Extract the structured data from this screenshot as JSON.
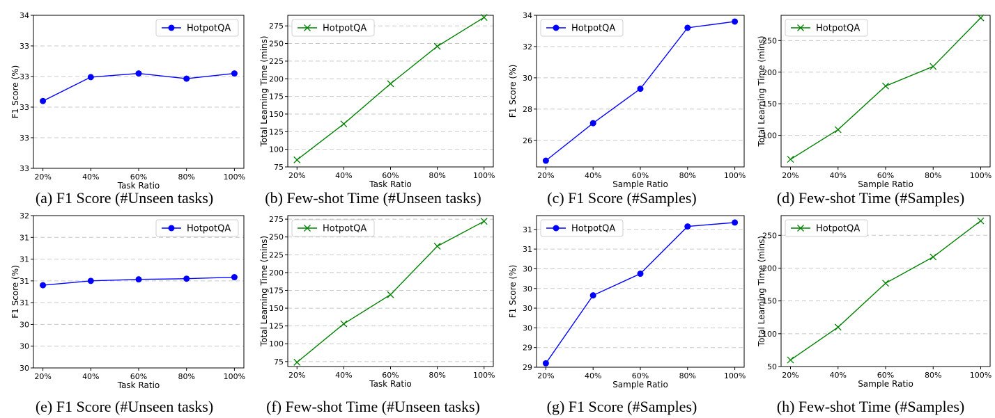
{
  "chart_data": [
    {
      "id": "a",
      "type": "line",
      "caption": "(a) F1 Score (#Unseen tasks)",
      "xlabel": "Task Ratio",
      "ylabel": "F1 Score (%)",
      "categories": [
        "20%",
        "40%",
        "60%",
        "80%",
        "100%"
      ],
      "yticks": [
        "33",
        "33",
        "33",
        "33",
        "33",
        "34"
      ],
      "ylim": [
        0,
        5
      ],
      "series": [
        {
          "name": "HotpotQA",
          "marker": "circle",
          "color": "#0000ff",
          "values": [
            2.2,
            2.98,
            3.1,
            2.93,
            3.1
          ]
        }
      ],
      "legend": "top-right",
      "grid": "y-dashed"
    },
    {
      "id": "b",
      "type": "line",
      "caption": "(b) Few-shot Time (#Unseen tasks)",
      "xlabel": "Task Ratio",
      "ylabel": "Total Learning Time (mins)",
      "categories": [
        "20%",
        "40%",
        "60%",
        "80%",
        "100%"
      ],
      "yticks": [
        "75",
        "100",
        "125",
        "150",
        "175",
        "200",
        "225",
        "250",
        "275"
      ],
      "ylim": [
        75,
        290
      ],
      "series": [
        {
          "name": "HotpotQA",
          "marker": "x",
          "color": "#008000",
          "values": [
            85,
            136,
            193,
            246,
            287
          ]
        }
      ],
      "legend": "top-left",
      "grid": "y-dashed"
    },
    {
      "id": "c",
      "type": "line",
      "caption": "(c) F1 Score (#Samples)",
      "xlabel": "Sample Ratio",
      "ylabel": "F1 Score (%)",
      "categories": [
        "20%",
        "40%",
        "60%",
        "80%",
        "100%"
      ],
      "yticks": [
        "26",
        "28",
        "30",
        "32",
        "34"
      ],
      "ylim": [
        24.3,
        34
      ],
      "series": [
        {
          "name": "HotpotQA",
          "marker": "circle",
          "color": "#0000ff",
          "values": [
            24.7,
            27.1,
            29.3,
            33.2,
            33.6
          ]
        }
      ],
      "legend": "top-left",
      "grid": "y-dashed"
    },
    {
      "id": "d",
      "type": "line",
      "caption": "(d) Few-shot Time (#Samples)",
      "xlabel": "Sample Ratio",
      "ylabel": "Total Learning Time (mins)",
      "categories": [
        "20%",
        "40%",
        "60%",
        "80%",
        "100%"
      ],
      "yticks": [
        "100",
        "150",
        "200",
        "250"
      ],
      "ylim": [
        50,
        290
      ],
      "series": [
        {
          "name": "HotpotQA",
          "marker": "x",
          "color": "#008000",
          "values": [
            62,
            109,
            178,
            209,
            286
          ]
        }
      ],
      "legend": "top-left",
      "grid": "y-dashed"
    },
    {
      "id": "e",
      "type": "line",
      "caption": "(e) F1 Score (#Unseen tasks)",
      "xlabel": "Task Ratio",
      "ylabel": "F1 Score (%)",
      "categories": [
        "20%",
        "40%",
        "60%",
        "80%",
        "100%"
      ],
      "yticks": [
        "30",
        "30",
        "30",
        "31",
        "31",
        "31",
        "31",
        "32"
      ],
      "ylim": [
        0,
        7
      ],
      "series": [
        {
          "name": "HotpotQA",
          "marker": "circle",
          "color": "#0000ff",
          "values": [
            3.8,
            4.0,
            4.07,
            4.1,
            4.17
          ]
        }
      ],
      "legend": "top-right",
      "grid": "y-dashed"
    },
    {
      "id": "f",
      "type": "line",
      "caption": "(f) Few-shot Time (#Unseen tasks)",
      "xlabel": "Task Ratio",
      "ylabel": "Total Learning Time (mins)",
      "categories": [
        "20%",
        "40%",
        "60%",
        "80%",
        "100%"
      ],
      "yticks": [
        "75",
        "100",
        "125",
        "150",
        "175",
        "200",
        "225",
        "250",
        "275"
      ],
      "ylim": [
        68,
        280
      ],
      "series": [
        {
          "name": "HotpotQA",
          "marker": "x",
          "color": "#008000",
          "values": [
            74,
            128,
            169,
            237,
            272
          ]
        }
      ],
      "legend": "top-left",
      "grid": "y-dashed"
    },
    {
      "id": "g",
      "type": "line",
      "caption": "(g) F1 Score (#Samples)",
      "xlabel": "Sample Ratio",
      "ylabel": "F1 Score (%)",
      "categories": [
        "20%",
        "40%",
        "60%",
        "80%",
        "100%"
      ],
      "yticks": [
        "29",
        "29",
        "30",
        "30",
        "30",
        "30",
        "31",
        "31"
      ],
      "ylim": [
        0,
        7.7
      ],
      "series": [
        {
          "name": "HotpotQA",
          "marker": "circle",
          "color": "#0000ff",
          "values": [
            0.2,
            3.65,
            4.75,
            7.15,
            7.35
          ]
        }
      ],
      "legend": "top-left",
      "grid": "y-dashed"
    },
    {
      "id": "h",
      "type": "line",
      "caption": "(h) Few-shot Time (#Samples)",
      "xlabel": "Sample Ratio",
      "ylabel": "Total Learning Time (mins)",
      "categories": [
        "20%",
        "40%",
        "60%",
        "80%",
        "100%"
      ],
      "yticks": [
        "50",
        "100",
        "150",
        "200",
        "250"
      ],
      "ylim": [
        50,
        280
      ],
      "series": [
        {
          "name": "HotpotQA",
          "marker": "x",
          "color": "#008000",
          "values": [
            60,
            110,
            177,
            217,
            272
          ]
        }
      ],
      "legend": "top-left",
      "grid": "y-dashed"
    }
  ]
}
